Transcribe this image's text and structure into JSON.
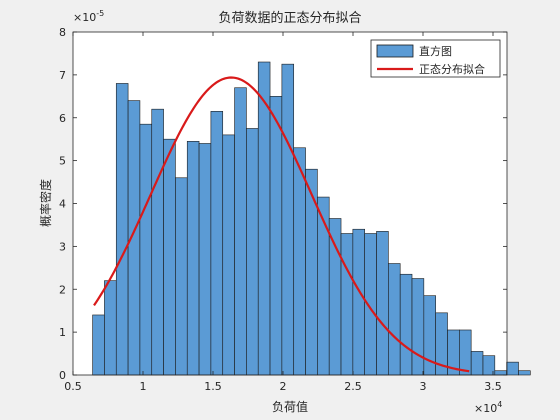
{
  "chart_data": {
    "type": "bar",
    "title": "负荷数据的正态分布拟合",
    "xlabel": "负荷值",
    "ylabel": "概率密度",
    "x_exponent_label": "×10",
    "x_exponent": "4",
    "y_exponent_label": "×10",
    "y_exponent": "-5",
    "xlim": [
      0.5,
      3.6
    ],
    "ylim": [
      0,
      8
    ],
    "x_ticks": [
      0.5,
      1,
      1.5,
      2,
      2.5,
      3,
      3.5
    ],
    "x_tick_labels": [
      "0.5",
      "1",
      "1.5",
      "2",
      "2.5",
      "3",
      "3.5"
    ],
    "y_ticks": [
      0,
      1,
      2,
      3,
      4,
      5,
      6,
      7,
      8
    ],
    "y_tick_labels": [
      "0",
      "1",
      "2",
      "3",
      "4",
      "5",
      "6",
      "7",
      "8"
    ],
    "grid": false,
    "legend_position": "top-right",
    "bin_width": 0.0845,
    "bin_start": 0.64,
    "histogram_values": [
      1.4,
      2.2,
      6.8,
      6.4,
      5.85,
      6.2,
      5.5,
      4.6,
      5.45,
      5.4,
      6.15,
      5.6,
      6.7,
      5.75,
      7.3,
      6.5,
      7.25,
      5.3,
      4.8,
      4.15,
      3.65,
      3.3,
      3.4,
      3.3,
      3.35,
      2.6,
      2.35,
      2.25,
      1.85,
      1.45,
      1.05,
      1.05,
      0.55,
      0.45,
      0.1,
      0.3,
      0.1
    ],
    "fit": {
      "mu": 1.63,
      "sigma": 0.575,
      "x_from": 0.65,
      "x_to": 3.33
    },
    "legend": {
      "hist_label": "直方图",
      "fit_label": "正态分布拟合"
    },
    "colors": {
      "bar_fill": "#5b9bd5",
      "bar_edge": "#1a1a1a",
      "fit_line": "#d91a1a",
      "axes_bg": "#ffffff",
      "figure_bg": "#f0f0f0"
    }
  }
}
